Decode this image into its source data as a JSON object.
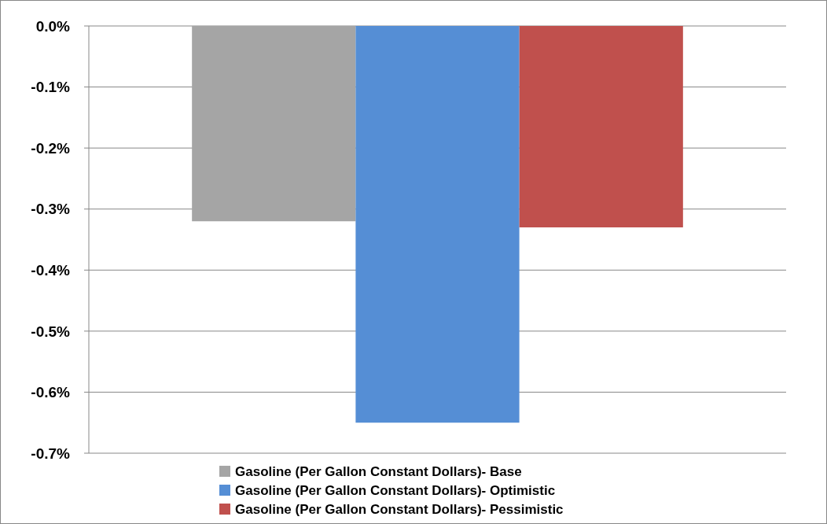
{
  "chart_data": {
    "type": "bar",
    "categories": [
      null
    ],
    "series": [
      {
        "name": "Gasoline (Per Gallon Constant Dollars)- Base",
        "color": "#a5a5a5",
        "values": [
          -0.32
        ]
      },
      {
        "name": "Gasoline (Per Gallon Constant Dollars)- Optimistic",
        "color": "#558ed5",
        "values": [
          -0.65
        ]
      },
      {
        "name": "Gasoline (Per Gallon Constant Dollars)- Pessimistic",
        "color": "#c0504d",
        "values": [
          -0.33
        ]
      }
    ],
    "ylim": [
      -0.7,
      0
    ],
    "yticks": [
      {
        "value": 0,
        "label": "0.0%"
      },
      {
        "value": -0.1,
        "label": "-0.1%"
      },
      {
        "value": -0.2,
        "label": "-0.2%"
      },
      {
        "value": -0.3,
        "label": "-0.3%"
      },
      {
        "value": -0.4,
        "label": "-0.4%"
      },
      {
        "value": -0.5,
        "label": "-0.5%"
      },
      {
        "value": -0.6,
        "label": "-0.6%"
      },
      {
        "value": -0.7,
        "label": "-0.7%"
      }
    ],
    "grid": "y",
    "legend": "bottom"
  }
}
